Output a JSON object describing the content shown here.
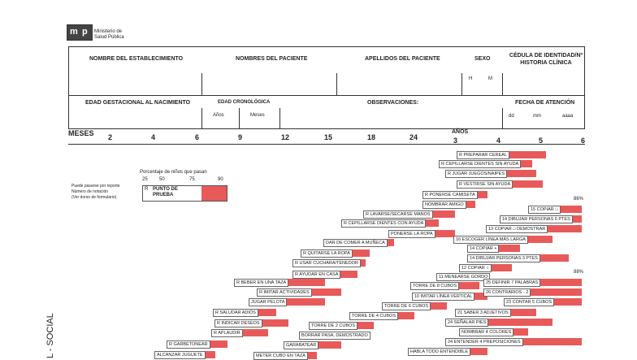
{
  "header": {
    "logo_m": "m",
    "logo_p": "p",
    "ministry": "Ministerio de Salud Pública"
  },
  "form": {
    "row1": [
      "NOMBRE DEL ESTABLECIMIENTO",
      "NOMBRES DEL PACIENTE",
      "APELLIDOS DEL PACIENTE",
      "SEXO",
      "CÉDULA DE IDENTIDAD/Nº HISTORIA CLÍNICA"
    ],
    "sex": [
      "H",
      "M"
    ],
    "row2": [
      "EDAD GESTACIONAL AL NACIMIENTO",
      "EDAD CRONOLÓGICA",
      "OBSERVACIONES:",
      "FECHA DE ATENCIÓN"
    ],
    "age_sub": [
      "Años",
      "Meses"
    ],
    "date_sub": [
      "dd",
      "mm",
      "aaaa"
    ]
  },
  "age_scale": {
    "months_label": "MESES",
    "months": [
      "2",
      "4",
      "6",
      "9",
      "12",
      "15",
      "18",
      "24"
    ],
    "years_label": "AÑOS",
    "years": [
      "3",
      "4",
      "5",
      "6"
    ]
  },
  "legend": {
    "title": "Porcentaje de niños que pasan",
    "percents": [
      "25",
      "50",
      "75",
      "90"
    ],
    "prefix": "R",
    "label": "PUNTO DE PRUEBA",
    "note": [
      "Puede pasarse por reporte",
      "Número de notación",
      "(Ver dorso de formulario)"
    ]
  },
  "items": [
    "R PREPARAR CEREAL",
    "R CEPILLARSE DIENTES SIN AYUDA",
    "R JUGAR JUEGOS/NAIPES",
    "R VESTIRSE SIN AYUDA",
    "R PONERSE CAMISETA",
    "NOMBRAR AMIGO",
    "R LAVARSE/SECARSE MANOS",
    "R CEPILLARSE DIENTES CON AYUDA",
    "PONERSE LA ROPA",
    "DAR DE COMER A MUÑECA",
    "R QUITARSE LA ROPA",
    "R USAR CUCHARA/TENEDOR",
    "R AYUDAR EN CASA",
    "R BEBER EN UNA TAZA",
    "R IMITAR ACTIVIDADES",
    "JUGAR PELOTA",
    "R SALUDAR ADIÓS",
    "R INDICAR DESEOS",
    "R APLAUDIR",
    "R GARBETONEAR",
    "ALCANZAR JUGUETE",
    "TORRE DE 8 CUBOS",
    "10 IMITAR LÍNEA VERTICAL",
    "TORRE DE 6 CUBOS",
    "TORRE DE 4 CUBOS",
    "TORRE DE 2 CUBOS",
    "BORRAR PASA, DEMOSTRADO",
    "GARABATEAR",
    "METER CUBO EN TAZA",
    "11 MENEARSE GORDO",
    "15 COPIAR □",
    "14 DIBUJAR PERSONAS 6 PTES",
    "13 COPIAR □ DEMOSTRAR",
    "16 ESCOGER LÍNEA MÁS LARGA",
    "14 COPIAR +",
    "14 DIBUJAR PERSONAS 3 PTES",
    "12 COPIAR ○",
    "25 DEFINIR 7 PALABRAS",
    "26 CONTRARIOS - 2",
    "23 CONTAR 5 CUBOS",
    "21 SABER 3 ADJETIVOS",
    "24 SEÑALAR PIES",
    "NOMBRAR 4 COLORES",
    "24 ENTENDER 4 PREPOSICIONES",
    "HABLA TODO ENTENDIBLE"
  ],
  "percent_notes": [
    "86%",
    "88%"
  ],
  "section": "L - SOCIAL"
}
